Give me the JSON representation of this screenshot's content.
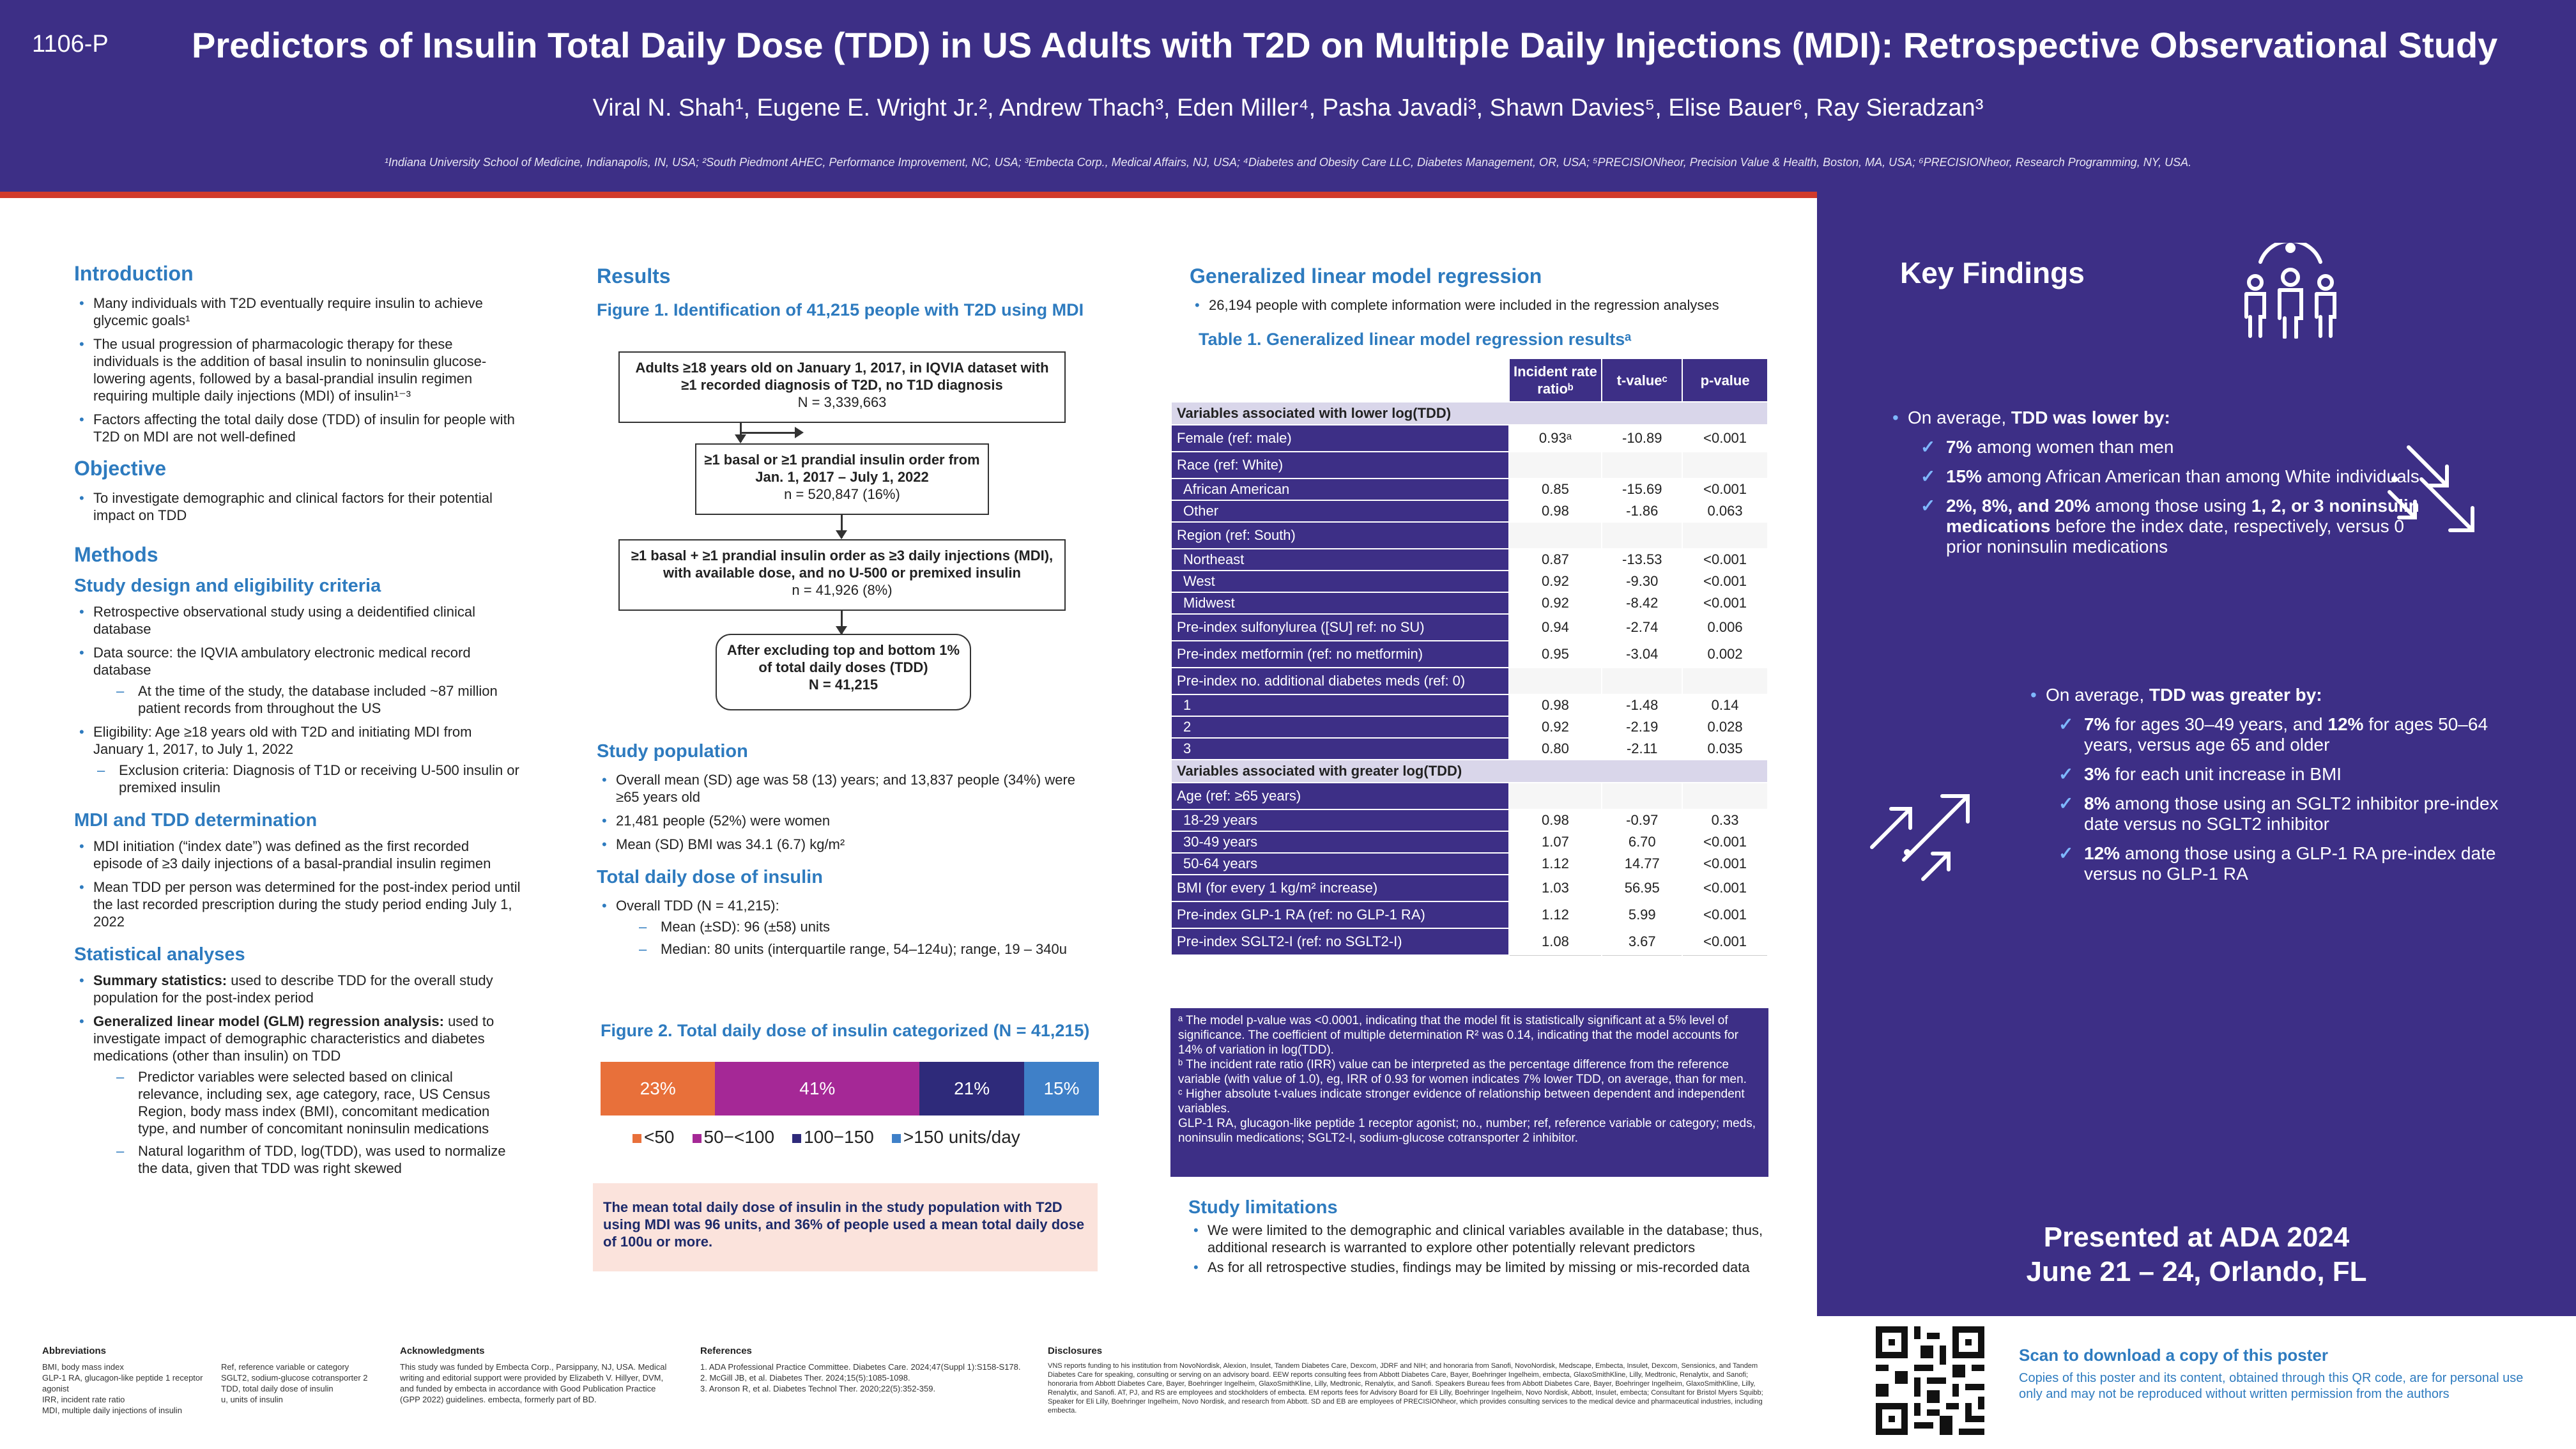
{
  "header": {
    "poster_id": "1106-P",
    "title": "Predictors of Insulin Total Daily Dose (TDD) in US Adults with T2D on Multiple Daily Injections (MDI): Retrospective Observational Study",
    "authors": "Viral N. Shah¹, Eugene E. Wright Jr.², Andrew Thach³, Eden Miller⁴, Pasha Javadi³, Shawn Davies⁵, Elise Bauer⁶, Ray Sieradzan³",
    "affiliations": "¹Indiana University School of Medicine, Indianapolis, IN, USA; ²South Piedmont AHEC, Performance Improvement, NC, USA; ³Embecta Corp., Medical Affairs, NJ, USA; ⁴Diabetes and Obesity Care LLC, Diabetes Management, OR, USA; ⁵PRECISIONheor, Precision Value & Health, Boston, MA, USA; ⁶PRECISIONheor, Research Programming, NY, USA."
  },
  "intro": {
    "heading": "Introduction",
    "bullets": [
      "Many individuals with T2D eventually require insulin to achieve glycemic goals¹",
      "The usual progression of pharmacologic therapy for these individuals is the addition of basal insulin to noninsulin glucose-lowering agents, followed by a basal-prandial insulin regimen requiring multiple daily injections (MDI) of insulin¹⁻³",
      "Factors affecting the total daily dose (TDD) of insulin for people with T2D on MDI are not well-defined"
    ]
  },
  "objective": {
    "heading": "Objective",
    "bullets": [
      "To investigate demographic and clinical factors for their potential impact on TDD"
    ]
  },
  "methods": {
    "heading": "Methods",
    "design_heading": "Study design and eligibility criteria",
    "design_b1": "Retrospective observational study using a deidentified clinical database",
    "design_b2": "Data source: the IQVIA ambulatory electronic medical record database",
    "design_d1": "At the time of the study, the database included ~87 million patient records from throughout the US",
    "design_b3": "Eligibility: Age ≥18 years old with T2D and initiating MDI from January 1, 2017, to July 1, 2022",
    "design_d2": "Exclusion criteria: Diagnosis of T1D or receiving U-500 insulin or premixed insulin",
    "mdi_heading": "MDI and TDD determination",
    "mdi_b1": "MDI initiation (“index date”) was defined as the first recorded episode of ≥3 daily injections of a basal-prandial insulin regimen",
    "mdi_b2": "Mean TDD per person was determined for the post-index period until the last recorded prescription during the study period ending July 1, 2022",
    "stats_heading": "Statistical analyses",
    "stats_b1_bold": "Summary statistics:",
    "stats_b1": " used to describe TDD for the overall study population for the post-index period",
    "stats_b2_bold": "Generalized linear model (GLM) regression analysis:",
    "stats_b2": " used to investigate impact of demographic characteristics and diabetes medications (other than insulin) on TDD",
    "stats_d1": "Predictor variables were selected based on clinical relevance, including sex, age category, race, US Census Region, body mass index (BMI), concomitant medication type, and number of concomitant noninsulin medications",
    "stats_d2": "Natural logarithm of TDD, log(TDD), was used to normalize the data, given that TDD was right skewed"
  },
  "results": {
    "heading": "Results",
    "fig1_title": "Figure 1. Identification of 41,215 people with T2D using MDI",
    "flow": [
      {
        "text": "Adults ≥18 years old on January 1, 2017, in IQVIA dataset with ≥1 recorded diagnosis of T2D, no T1D diagnosis",
        "n": "N = 3,339,663"
      },
      {
        "text": "≥1 basal or ≥1 prandial insulin order from Jan. 1, 2017 – July 1, 2022",
        "n": "n = 520,847 (16%)"
      },
      {
        "text": "≥1 basal + ≥1 prandial insulin order as ≥3 daily injections (MDI), with available dose, and no U-500 or premixed insulin",
        "n": "n = 41,926 (8%)"
      },
      {
        "text": "After excluding top and bottom 1% of total daily doses (TDD)",
        "n": "N = 41,215"
      }
    ],
    "pop_heading": "Study population",
    "pop_bullets": [
      "Overall mean (SD) age was 58 (13) years; and 13,837 people (34%) were ≥65 years old",
      "21,481 people (52%) were women",
      "Mean (SD) BMI was 34.1 (6.7) kg/m²"
    ],
    "tdd_heading": "Total daily dose of insulin",
    "tdd_b1": "Overall TDD (N = 41,215):",
    "tdd_d1": "Mean (±SD): 96 (±58) units",
    "tdd_d2": "Median: 80 units (interquartile range, 54–124u); range, 19 – 340u",
    "fig2_title": "Figure 2. Total daily dose of insulin categorized (N = 41,215)",
    "highlight": "The mean total daily dose of insulin in the study population with T2D using MDI was 96 units, and 36% of people used a mean total daily dose of 100u or more."
  },
  "chart_data": {
    "type": "bar",
    "orientation": "horizontal-stacked",
    "title": "Figure 2. Total daily dose of insulin categorized (N = 41,215)",
    "series": [
      {
        "name": "<50",
        "value": 23,
        "label": "23%",
        "color": "#e8703a"
      },
      {
        "name": "50−<100",
        "value": 41,
        "label": "41%",
        "color": "#a52896"
      },
      {
        "name": "100−150",
        "value": 21,
        "label": "21%",
        "color": "#2e2a7a"
      },
      {
        "name": ">150 units/day",
        "value": 15,
        "label": "15%",
        "color": "#3f80c8"
      }
    ],
    "xlim": [
      0,
      100
    ]
  },
  "glm": {
    "heading": "Generalized linear model regression",
    "bullet": "26,194 people with complete information were included in the regression analyses",
    "table_title": "Table 1. Generalized linear model regression resultsᵃ",
    "col_irr": "Incident rate ratioᵇ",
    "col_t": "t-valueᶜ",
    "col_p": "p-value",
    "rows": [
      {
        "kind": "sec",
        "label": "Variables associated with lower log(TDD)"
      },
      {
        "kind": "row",
        "label": "Female (ref: male)",
        "irr": "0.93ᵃ",
        "t": "-10.89",
        "p": "<0.001"
      },
      {
        "kind": "sub",
        "label": "Race (ref: White)"
      },
      {
        "kind": "cat",
        "label": "African American",
        "irr": "0.85",
        "t": "-15.69",
        "p": "<0.001"
      },
      {
        "kind": "cat",
        "label": "Other",
        "irr": "0.98",
        "t": "-1.86",
        "p": "0.063"
      },
      {
        "kind": "sub",
        "label": "Region (ref: South)"
      },
      {
        "kind": "cat",
        "label": "Northeast",
        "irr": "0.87",
        "t": "-13.53",
        "p": "<0.001"
      },
      {
        "kind": "cat",
        "label": "West",
        "irr": "0.92",
        "t": "-9.30",
        "p": "<0.001"
      },
      {
        "kind": "cat",
        "label": "Midwest",
        "irr": "0.92",
        "t": "-8.42",
        "p": "<0.001"
      },
      {
        "kind": "row",
        "label": "Pre-index sulfonylurea ([SU] ref: no SU)",
        "irr": "0.94",
        "t": "-2.74",
        "p": "0.006"
      },
      {
        "kind": "row",
        "label": "Pre-index metformin (ref: no metformin)",
        "irr": "0.95",
        "t": "-3.04",
        "p": "0.002"
      },
      {
        "kind": "sub",
        "label": "Pre-index no. additional diabetes meds (ref: 0)"
      },
      {
        "kind": "cat",
        "label": "1",
        "irr": "0.98",
        "t": "-1.48",
        "p": "0.14"
      },
      {
        "kind": "cat",
        "label": "2",
        "irr": "0.92",
        "t": "-2.19",
        "p": "0.028"
      },
      {
        "kind": "cat",
        "label": "3",
        "irr": "0.80",
        "t": "-2.11",
        "p": "0.035"
      },
      {
        "kind": "sec",
        "label": "Variables associated with greater log(TDD)"
      },
      {
        "kind": "sub",
        "label": "Age (ref: ≥65 years)"
      },
      {
        "kind": "cat",
        "label": "18-29 years",
        "irr": "0.98",
        "t": "-0.97",
        "p": "0.33"
      },
      {
        "kind": "cat",
        "label": "30-49 years",
        "irr": "1.07",
        "t": "6.70",
        "p": "<0.001"
      },
      {
        "kind": "cat",
        "label": "50-64 years",
        "irr": "1.12",
        "t": "14.77",
        "p": "<0.001"
      },
      {
        "kind": "row",
        "label": "BMI (for every 1 kg/m² increase)",
        "irr": "1.03",
        "t": "56.95",
        "p": "<0.001"
      },
      {
        "kind": "row",
        "label": "Pre-index GLP-1 RA (ref: no GLP-1 RA)",
        "irr": "1.12",
        "t": "5.99",
        "p": "<0.001"
      },
      {
        "kind": "row",
        "label": "Pre-index SGLT2-I (ref: no SGLT2-I)",
        "irr": "1.08",
        "t": "3.67",
        "p": "<0.001"
      }
    ],
    "footnote_a": "ᵃ The model p-value was <0.0001, indicating that the model fit is statistically significant at a 5% level of significance. The coefficient of multiple determination R² was 0.14, indicating that the model accounts for 14% of variation in log(TDD).",
    "footnote_b": "ᵇ The incident rate ratio (IRR) value can be interpreted as the percentage difference from the reference variable (with value of 1.0), eg, IRR of 0.93 for women indicates 7% lower TDD, on average, than for men.",
    "footnote_c": "ᶜ Higher absolute t-values indicate stronger evidence of relationship between dependent and independent variables.",
    "footnote_abbr": "GLP-1 RA, glucagon-like peptide 1 receptor agonist; no., number; ref, reference variable or category; meds, noninsulin medications; SGLT2-I, sodium-glucose cotransporter 2 inhibitor.",
    "limits_heading": "Study limitations",
    "limits": [
      "We were limited to the demographic and clinical variables available in the database; thus, additional research is warranted to explore other potentially relevant predictors",
      "As for all retrospective studies, findings may be limited by missing or mis-recorded data"
    ]
  },
  "key": {
    "heading": "Key Findings",
    "lower_intro": "On average, ",
    "lower_bold": "TDD was lower by:",
    "lower": [
      {
        "b": "7%",
        "t": " among women than men"
      },
      {
        "b": "15%",
        "t": " among African American than among White individuals"
      },
      {
        "b": "2%, 8%, and 20%",
        "t": " among those using ",
        "b2": "1, 2, or 3 noninsulin medications",
        "t2": " before the index date, respectively, versus 0 prior noninsulin medications"
      }
    ],
    "greater_intro": "On average, ",
    "greater_bold": "TDD was greater by:",
    "greater": [
      {
        "b": "7%",
        "t": " for ages 30–49 years, and ",
        "b2": "12%",
        "t2": "  for ages 50–64 years, versus age 65 and older"
      },
      {
        "b": "3%",
        "t": " for each unit increase in BMI"
      },
      {
        "b": "8%",
        "t": " among those using an SGLT2 inhibitor pre-index date versus no SGLT2 inhibitor"
      },
      {
        "b": "12%",
        "t": " among those using a GLP-1 RA  pre-index date versus no GLP-1 RA"
      }
    ],
    "presented_1": "Presented at ADA 2024",
    "presented_2": "June 21 – 24, Orlando, FL"
  },
  "footer": {
    "abbr_heading": "Abbreviations",
    "abbr_col1": [
      "BMI, body mass index",
      "GLP-1 RA, glucagon-like peptide 1 receptor agonist",
      "IRR, incident rate ratio",
      "MDI, multiple daily injections of insulin"
    ],
    "abbr_col2": [
      "Ref, reference variable or category",
      "SGLT2, sodium-glucose cotransporter 2",
      "TDD, total daily dose of insulin",
      "u, units of insulin"
    ],
    "ack_heading": "Acknowledgments",
    "ack": "This study was funded by Embecta Corp., Parsippany, NJ, USA. Medical writing and editorial support were provided by Elizabeth V. Hillyer, DVM, and funded by embecta in accordance with Good Publication Practice (GPP 2022) guidelines. embecta, formerly part of BD.",
    "ref_heading": "References",
    "refs": [
      "1. ADA Professional Practice Committee. Diabetes Care. 2024;47(Suppl 1):S158-S178.",
      "2. McGill JB, et al. Diabetes Ther. 2024;15(5):1085-1098.",
      "3. Aronson R, et al. Diabetes Technol Ther. 2020;22(5):352-359."
    ],
    "disc_heading": "Disclosures",
    "disc": "VNS reports funding to his institution from NovoNordisk, Alexion, Insulet, Tandem Diabetes Care, Dexcom, JDRF and NIH; and honoraria from Sanofi, NovoNordisk, Medscape, Embecta, Insulet, Dexcom, Sensionics, and Tandem Diabetes Care for speaking, consulting or serving on an advisory board. EEW reports consulting fees from Abbott Diabetes Care, Bayer, Boehringer Ingelheim, embecta, GlaxoSmithKline, Lilly, Medtronic, Renalytix, and Sanofi; honoraria from Abbott Diabetes Care, Bayer, Boehringer Ingelheim, GlaxoSmithKline, Lilly, Medtronic, Renalytix, and Sanofi. Speakers Bureau fees from Abbott Diabetes Care, Bayer, Boehringer Ingelheim, GlaxoSmithKline, Lilly, Renalytix, and Sanofi. AT, PJ, and RS are employees and stockholders of embecta. EM reports fees for Advisory Board for Eli Lilly, Boehringer Ingelheim, Novo Nordisk, Abbott, Insulet, embecta; Consultant for Bristol Myers Squibb; Speaker for Eli Lilly, Boehringer Ingelheim, Novo Nordisk, and research from Abbott. SD and EB are employees of PRECISIONheor, which provides consulting services to the medical device and pharmaceutical industries, including embecta.",
    "qr_heading": "Scan to download a copy of this poster",
    "qr_text": "Copies of this poster and its content, obtained through this QR code, are for personal use only and may not be reproduced without written permission from the authors"
  }
}
